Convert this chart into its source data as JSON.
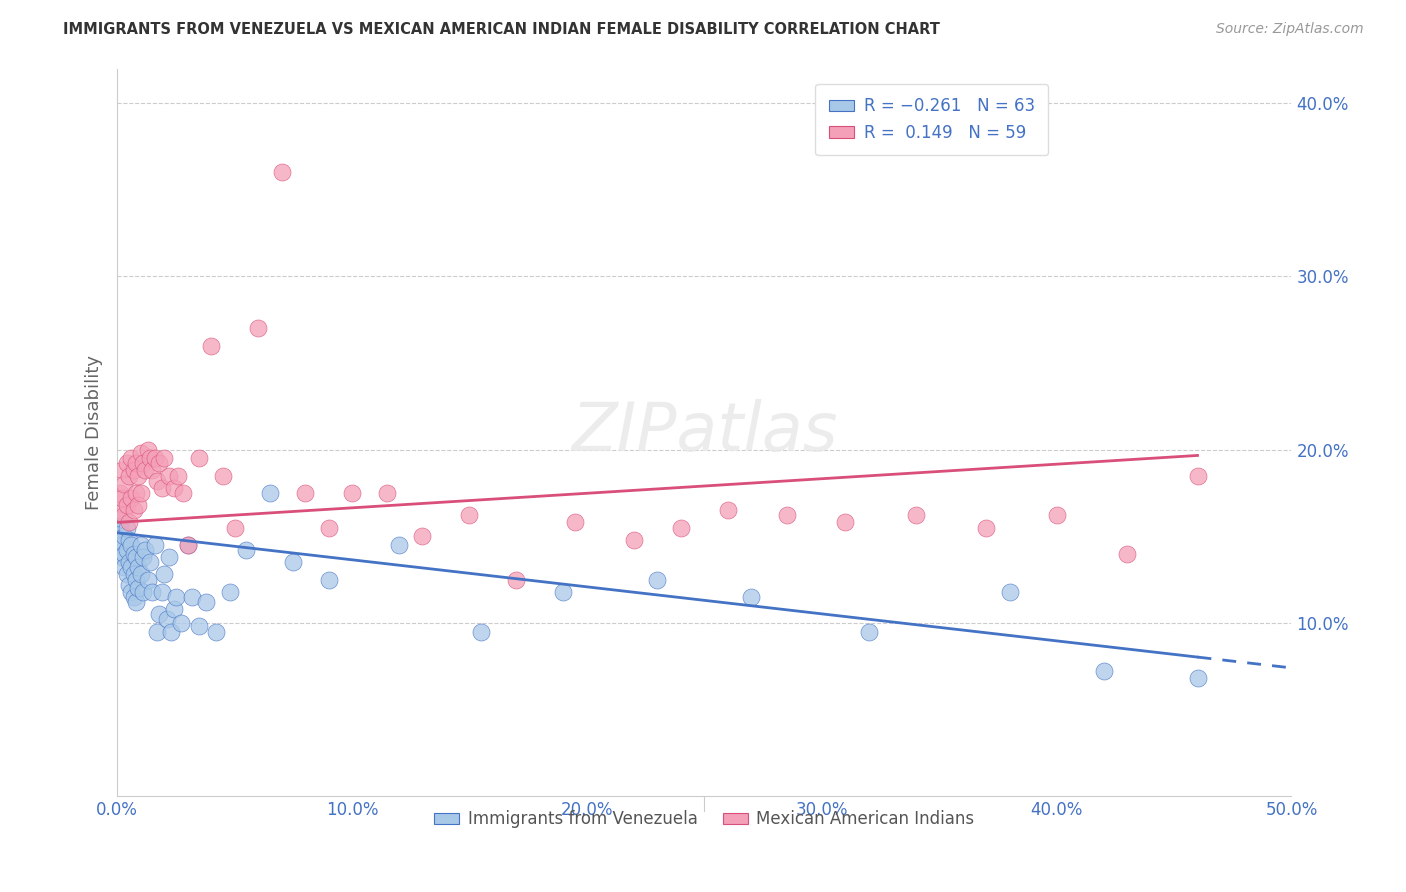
{
  "title": "IMMIGRANTS FROM VENEZUELA VS MEXICAN AMERICAN INDIAN FEMALE DISABILITY CORRELATION CHART",
  "source": "Source: ZipAtlas.com",
  "tick_color": "#4472c4",
  "ylabel": "Female Disability",
  "xlim": [
    0.0,
    0.5
  ],
  "ylim": [
    0.0,
    0.42
  ],
  "xticks": [
    0.0,
    0.1,
    0.2,
    0.3,
    0.4,
    0.5
  ],
  "yticks": [
    0.1,
    0.2,
    0.3,
    0.4
  ],
  "ytick_labels": [
    "10.0%",
    "20.0%",
    "30.0%",
    "40.0%"
  ],
  "xtick_labels": [
    "0.0%",
    "10.0%",
    "20.0%",
    "30.0%",
    "40.0%",
    "50.0%"
  ],
  "blue_color": "#a8c8e8",
  "pink_color": "#f4a0b8",
  "line_blue": "#4472c4",
  "line_pink": "#d94f7a",
  "blue_scatter_x": [
    0.001,
    0.001,
    0.002,
    0.002,
    0.002,
    0.003,
    0.003,
    0.003,
    0.004,
    0.004,
    0.004,
    0.005,
    0.005,
    0.005,
    0.006,
    0.006,
    0.006,
    0.007,
    0.007,
    0.007,
    0.008,
    0.008,
    0.008,
    0.009,
    0.009,
    0.01,
    0.01,
    0.011,
    0.011,
    0.012,
    0.013,
    0.014,
    0.015,
    0.016,
    0.017,
    0.018,
    0.019,
    0.02,
    0.021,
    0.022,
    0.023,
    0.024,
    0.025,
    0.027,
    0.03,
    0.032,
    0.035,
    0.038,
    0.042,
    0.048,
    0.055,
    0.065,
    0.075,
    0.09,
    0.12,
    0.155,
    0.19,
    0.23,
    0.27,
    0.32,
    0.38,
    0.42,
    0.46
  ],
  "blue_scatter_y": [
    0.155,
    0.148,
    0.16,
    0.145,
    0.138,
    0.15,
    0.14,
    0.132,
    0.155,
    0.142,
    0.128,
    0.148,
    0.135,
    0.122,
    0.145,
    0.132,
    0.118,
    0.14,
    0.128,
    0.115,
    0.138,
    0.125,
    0.112,
    0.132,
    0.12,
    0.145,
    0.128,
    0.138,
    0.118,
    0.142,
    0.125,
    0.135,
    0.118,
    0.145,
    0.095,
    0.105,
    0.118,
    0.128,
    0.102,
    0.138,
    0.095,
    0.108,
    0.115,
    0.1,
    0.145,
    0.115,
    0.098,
    0.112,
    0.095,
    0.118,
    0.142,
    0.175,
    0.135,
    0.125,
    0.145,
    0.095,
    0.118,
    0.125,
    0.115,
    0.095,
    0.118,
    0.072,
    0.068
  ],
  "pink_scatter_x": [
    0.001,
    0.001,
    0.002,
    0.002,
    0.003,
    0.003,
    0.004,
    0.004,
    0.005,
    0.005,
    0.006,
    0.006,
    0.007,
    0.007,
    0.008,
    0.008,
    0.009,
    0.009,
    0.01,
    0.01,
    0.011,
    0.012,
    0.013,
    0.014,
    0.015,
    0.016,
    0.017,
    0.018,
    0.019,
    0.02,
    0.022,
    0.024,
    0.026,
    0.028,
    0.03,
    0.035,
    0.04,
    0.045,
    0.05,
    0.06,
    0.07,
    0.08,
    0.09,
    0.1,
    0.115,
    0.13,
    0.15,
    0.17,
    0.195,
    0.22,
    0.24,
    0.26,
    0.285,
    0.31,
    0.34,
    0.37,
    0.4,
    0.43,
    0.46
  ],
  "pink_scatter_y": [
    0.175,
    0.165,
    0.188,
    0.172,
    0.18,
    0.162,
    0.192,
    0.168,
    0.185,
    0.158,
    0.195,
    0.172,
    0.188,
    0.165,
    0.192,
    0.175,
    0.185,
    0.168,
    0.198,
    0.175,
    0.192,
    0.188,
    0.2,
    0.195,
    0.188,
    0.195,
    0.182,
    0.192,
    0.178,
    0.195,
    0.185,
    0.178,
    0.185,
    0.175,
    0.145,
    0.195,
    0.26,
    0.185,
    0.155,
    0.27,
    0.36,
    0.175,
    0.155,
    0.175,
    0.175,
    0.15,
    0.162,
    0.125,
    0.158,
    0.148,
    0.155,
    0.165,
    0.162,
    0.158,
    0.162,
    0.155,
    0.162,
    0.14,
    0.185
  ],
  "blue_line_x_start": 0.0,
  "blue_line_x_end": 0.5,
  "blue_line_y_start": 0.152,
  "blue_line_y_end": 0.074,
  "blue_line_solid_end": 0.46,
  "pink_line_x_start": 0.0,
  "pink_line_x_end": 0.5,
  "pink_line_y_start": 0.158,
  "pink_line_y_end": 0.2,
  "pink_line_solid_end": 0.46
}
